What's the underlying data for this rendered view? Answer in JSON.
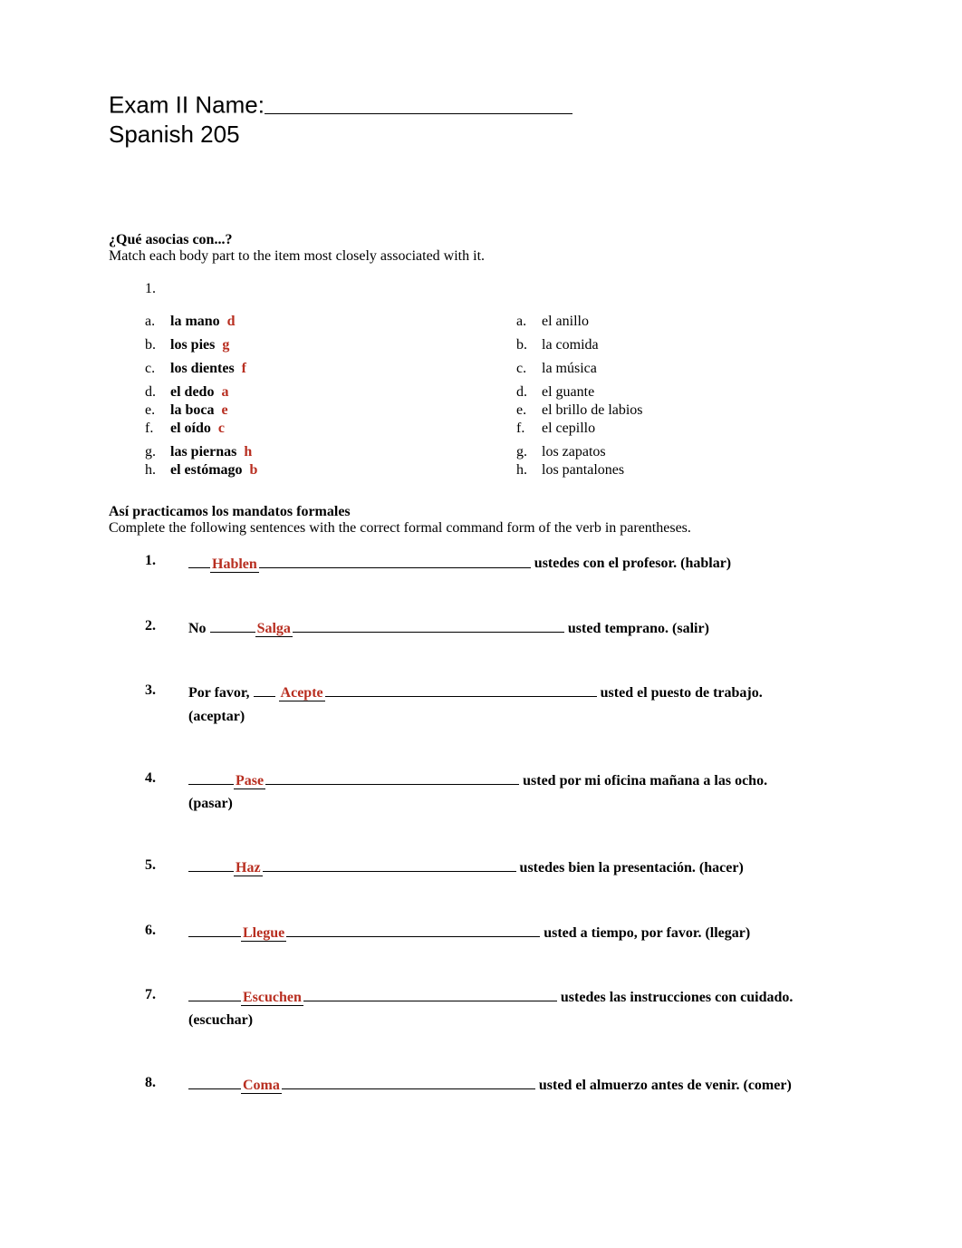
{
  "header": {
    "exam_label": "Exam II Name:",
    "course": "Spanish 205"
  },
  "section1": {
    "title": "¿Qué asocias con...?",
    "instructions": "Match each body part to the item most closely associated with it.",
    "num": "1.",
    "left": [
      {
        "letter": "a.",
        "term": "la mano",
        "answer": "d"
      },
      {
        "letter": "b.",
        "term": "los pies",
        "answer": "g"
      },
      {
        "letter": "c.",
        "term": "los dientes",
        "answer": "f"
      },
      {
        "letter": "d.",
        "term": "el dedo",
        "answer": "a"
      },
      {
        "letter": "e.",
        "term": "la boca",
        "answer": "e"
      },
      {
        "letter": "f.",
        "term": "el oído",
        "answer": "c"
      },
      {
        "letter": "g.",
        "term": "las piernas",
        "answer": "h"
      },
      {
        "letter": "h.",
        "term": "el estómago",
        "answer": "b"
      }
    ],
    "right": [
      {
        "letter": "a.",
        "label": "el anillo"
      },
      {
        "letter": "b.",
        "label": "la comida"
      },
      {
        "letter": "c.",
        "label": "la música"
      },
      {
        "letter": "d.",
        "label": "el guante"
      },
      {
        "letter": "e.",
        "label": "el brillo de labios"
      },
      {
        "letter": "f.",
        "label": "el cepillo"
      },
      {
        "letter": "g.",
        "label": "los zapatos"
      },
      {
        "letter": "h.",
        "label": "los pantalones"
      }
    ]
  },
  "section2": {
    "title": "Así practicamos los mandatos formales",
    "instructions": "Complete the following sentences with the correct formal command form of the verb in parentheses.",
    "items": [
      {
        "num": "1.",
        "prefix_type": "short_blank",
        "answer": "Hablen",
        "tail": "ustedes con el profesor. (hablar)",
        "paren": ""
      },
      {
        "num": "2.",
        "prefix_type": "no",
        "answer": "Salga",
        "tail": "usted temprano. (salir)",
        "paren": ""
      },
      {
        "num": "3.",
        "prefix_type": "porfavor",
        "answer": "Acepte",
        "tail": "usted el puesto de trabajo.",
        "paren": "(aceptar)"
      },
      {
        "num": "4.",
        "prefix_type": "mid_blank",
        "answer": "Pase",
        "tail": "usted por mi oficina mañana a las ocho.",
        "paren": "(pasar)"
      },
      {
        "num": "5.",
        "prefix_type": "mid_blank",
        "answer": "Haz",
        "tail": "ustedes bien la presentación. (hacer)",
        "paren": ""
      },
      {
        "num": "6.",
        "prefix_type": "mid_blank2",
        "answer": "Llegue",
        "tail": "usted a tiempo, por favor. (llegar)",
        "paren": ""
      },
      {
        "num": "7.",
        "prefix_type": "mid_blank2",
        "answer": "Escuchen",
        "tail": "ustedes las instrucciones con cuidado.",
        "paren": "(escuchar)"
      },
      {
        "num": "8.",
        "prefix_type": "mid_blank2",
        "answer": "Coma",
        "tail": "usted el almuerzo antes de venir. (comer)",
        "paren": ""
      }
    ],
    "labels": {
      "no": "No",
      "porfavor": "Por favor,"
    }
  },
  "style": {
    "answer_color": "#b82e20",
    "bg_color": "#ffffff",
    "text_color": "#000000",
    "header_font": "Arial",
    "body_font": "Times New Roman",
    "header_fontsize": 26,
    "body_fontsize": 16
  }
}
